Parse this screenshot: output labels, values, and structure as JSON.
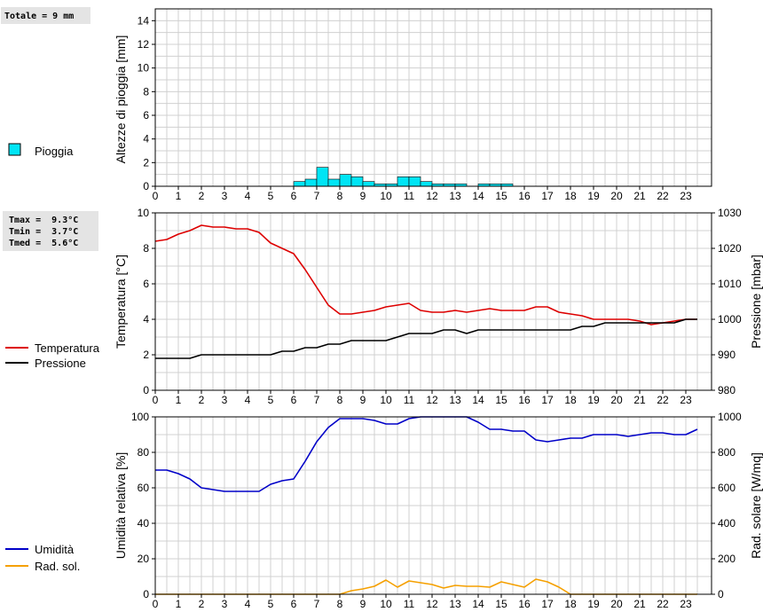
{
  "summary": {
    "rain_total": "Totale = 9 mm",
    "tmax": "Tmax =  9.3°C",
    "tmin": "Tmin =  3.7°C",
    "tmed": "Tmed =  5.6°C"
  },
  "colors": {
    "rain": "#00e5f5",
    "temperature": "#dd0000",
    "pressure": "#000000",
    "humidity": "#0000c8",
    "solar": "#f5a000",
    "grid": "#d0d0d0"
  },
  "chart_data": [
    {
      "type": "bar",
      "ylabel": "Altezze di pioggia [mm]",
      "ylim": [
        0,
        15
      ],
      "yticks": [
        0,
        2,
        4,
        6,
        8,
        10,
        12,
        14
      ],
      "xlim": [
        0,
        24
      ],
      "xticks": [
        0,
        1,
        2,
        3,
        4,
        5,
        6,
        7,
        8,
        9,
        10,
        11,
        12,
        13,
        14,
        15,
        16,
        17,
        18,
        19,
        20,
        21,
        22,
        23
      ],
      "grid": true,
      "legend": "left",
      "series": [
        {
          "name": "Pioggia",
          "bin_width_h": 0.5,
          "x": [
            6.0,
            6.5,
            7.0,
            7.5,
            8.0,
            8.5,
            9.0,
            9.5,
            10.0,
            10.5,
            11.0,
            11.5,
            12.0,
            12.5,
            13.0,
            14.0,
            14.5,
            15.0
          ],
          "values": [
            0.4,
            0.6,
            1.6,
            0.6,
            1.0,
            0.8,
            0.4,
            0.2,
            0.2,
            0.8,
            0.8,
            0.4,
            0.2,
            0.2,
            0.2,
            0.2,
            0.2,
            0.2
          ]
        }
      ]
    },
    {
      "type": "line",
      "ylabel": "Temperatura [°C]",
      "ylim": [
        0,
        10
      ],
      "yticks": [
        0,
        2,
        4,
        6,
        8,
        10
      ],
      "y2label": "Pressione [mbar]",
      "y2lim": [
        980,
        1030
      ],
      "y2ticks": [
        980,
        990,
        1000,
        1010,
        1020,
        1030
      ],
      "xlim": [
        0,
        24
      ],
      "xticks": [
        0,
        1,
        2,
        3,
        4,
        5,
        6,
        7,
        8,
        9,
        10,
        11,
        12,
        13,
        14,
        15,
        16,
        17,
        18,
        19,
        20,
        21,
        22,
        23
      ],
      "grid": true,
      "legend": "left",
      "series": [
        {
          "name": "Temperatura",
          "axis": "left",
          "x": [
            0,
            0.5,
            1,
            1.5,
            2,
            2.5,
            3,
            3.5,
            4,
            4.5,
            5,
            5.5,
            6,
            6.5,
            7,
            7.5,
            8,
            8.5,
            9,
            9.5,
            10,
            10.5,
            11,
            11.5,
            12,
            12.5,
            13,
            13.5,
            14,
            14.5,
            15,
            15.5,
            16,
            16.5,
            17,
            17.5,
            18,
            18.5,
            19,
            19.5,
            20,
            20.5,
            21,
            21.5,
            22,
            22.5,
            23,
            23.5
          ],
          "values": [
            8.4,
            8.5,
            8.8,
            9.0,
            9.3,
            9.2,
            9.2,
            9.1,
            9.1,
            8.9,
            8.3,
            8.0,
            7.7,
            6.8,
            5.8,
            4.8,
            4.3,
            4.3,
            4.4,
            4.5,
            4.7,
            4.8,
            4.9,
            4.5,
            4.4,
            4.4,
            4.5,
            4.4,
            4.5,
            4.6,
            4.5,
            4.5,
            4.5,
            4.7,
            4.7,
            4.4,
            4.3,
            4.2,
            4.0,
            4.0,
            4.0,
            4.0,
            3.9,
            3.7,
            3.8,
            3.9,
            4.0,
            4.0
          ]
        },
        {
          "name": "Pressione",
          "axis": "right",
          "x": [
            0,
            0.5,
            1,
            1.5,
            2,
            2.5,
            3,
            3.5,
            4,
            4.5,
            5,
            5.5,
            6,
            6.5,
            7,
            7.5,
            8,
            8.5,
            9,
            9.5,
            10,
            10.5,
            11,
            11.5,
            12,
            12.5,
            13,
            13.5,
            14,
            14.5,
            15,
            15.5,
            16,
            16.5,
            17,
            17.5,
            18,
            18.5,
            19,
            19.5,
            20,
            20.5,
            21,
            21.5,
            22,
            22.5,
            23,
            23.5
          ],
          "values": [
            989,
            989,
            989,
            989,
            990,
            990,
            990,
            990,
            990,
            990,
            990,
            991,
            991,
            992,
            992,
            993,
            993,
            994,
            994,
            994,
            994,
            995,
            996,
            996,
            996,
            997,
            997,
            996,
            997,
            997,
            997,
            997,
            997,
            997,
            997,
            997,
            997,
            998,
            998,
            999,
            999,
            999,
            999,
            999,
            999,
            999,
            1000,
            1000
          ]
        }
      ]
    },
    {
      "type": "line",
      "ylabel": "Umidità relativa [%]",
      "ylim": [
        0,
        100
      ],
      "yticks": [
        0,
        20,
        40,
        60,
        80,
        100
      ],
      "y2label": "Rad. solare [W/mq]",
      "y2lim": [
        0,
        1000
      ],
      "y2ticks": [
        0,
        200,
        400,
        600,
        800,
        1000
      ],
      "xlim": [
        0,
        24
      ],
      "xticks": [
        0,
        1,
        2,
        3,
        4,
        5,
        6,
        7,
        8,
        9,
        10,
        11,
        12,
        13,
        14,
        15,
        16,
        17,
        18,
        19,
        20,
        21,
        22,
        23
      ],
      "grid": true,
      "legend": "left",
      "series": [
        {
          "name": "Umidità",
          "axis": "left",
          "x": [
            0,
            0.5,
            1,
            1.5,
            2,
            2.5,
            3,
            3.5,
            4,
            4.5,
            5,
            5.5,
            6,
            6.5,
            7,
            7.5,
            8,
            8.5,
            9,
            9.5,
            10,
            10.5,
            11,
            11.5,
            12,
            12.5,
            13,
            13.5,
            14,
            14.5,
            15,
            15.5,
            16,
            16.5,
            17,
            17.5,
            18,
            18.5,
            19,
            19.5,
            20,
            20.5,
            21,
            21.5,
            22,
            22.5,
            23,
            23.5
          ],
          "values": [
            70,
            70,
            68,
            65,
            60,
            59,
            58,
            58,
            58,
            58,
            62,
            64,
            65,
            75,
            86,
            94,
            99,
            99,
            99,
            98,
            96,
            96,
            99,
            100,
            100,
            100,
            100,
            100,
            97,
            93,
            93,
            92,
            92,
            87,
            86,
            87,
            88,
            88,
            90,
            90,
            90,
            89,
            90,
            91,
            91,
            90,
            90,
            93
          ]
        },
        {
          "name": "Rad. sol.",
          "axis": "right",
          "x": [
            0,
            0.5,
            1,
            1.5,
            2,
            2.5,
            3,
            3.5,
            4,
            4.5,
            5,
            5.5,
            6,
            6.5,
            7,
            7.5,
            8,
            8.5,
            9,
            9.5,
            10,
            10.5,
            11,
            11.5,
            12,
            12.5,
            13,
            13.5,
            14,
            14.5,
            15,
            15.5,
            16,
            16.5,
            17,
            17.5,
            18,
            18.5,
            19,
            19.5,
            20,
            20.5,
            21,
            21.5,
            22,
            22.5,
            23,
            23.5
          ],
          "values": [
            0,
            0,
            0,
            0,
            0,
            0,
            0,
            0,
            0,
            0,
            0,
            0,
            0,
            0,
            0,
            0,
            0,
            20,
            30,
            45,
            80,
            40,
            75,
            65,
            55,
            35,
            50,
            45,
            45,
            40,
            70,
            55,
            40,
            85,
            70,
            40,
            0,
            0,
            0,
            0,
            0,
            0,
            0,
            0,
            0,
            0,
            0,
            0
          ]
        }
      ]
    }
  ]
}
